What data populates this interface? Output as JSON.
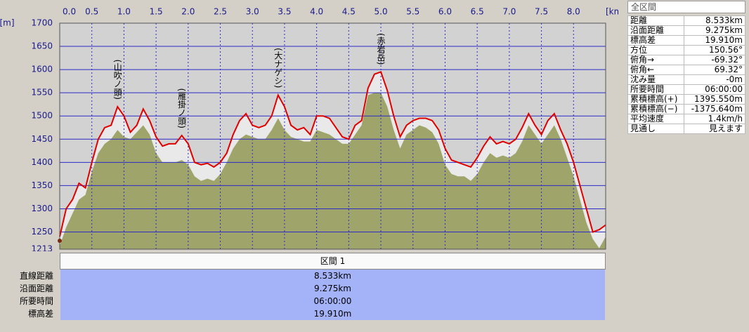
{
  "chart_data": {
    "type": "line",
    "xlabel": "[km]",
    "ylabel": "[m]",
    "xlim": [
      0,
      8.5
    ],
    "ylim": [
      1213,
      1700
    ],
    "xticks": [
      {
        "value": 0,
        "label": "0.0"
      },
      0.5,
      {
        "value": 1,
        "label": "1.0"
      },
      1.5,
      {
        "value": 2,
        "label": "2.0"
      },
      2.5,
      {
        "value": 3,
        "label": "3.0"
      },
      3.5,
      {
        "value": 4,
        "label": "4.0"
      },
      4.5,
      {
        "value": 5,
        "label": "5.0"
      },
      5.5,
      {
        "value": 6,
        "label": "6.0"
      },
      6.5,
      {
        "value": 7,
        "label": "7.0"
      },
      7.5,
      {
        "value": 8,
        "label": "8.0"
      }
    ],
    "yticks": [
      1213,
      1250,
      1300,
      1350,
      1400,
      1450,
      1500,
      1550,
      1600,
      1650,
      1700
    ],
    "grid": true,
    "grid_color": "#2b2bc8",
    "plot_background": "#d2d2d2",
    "x": [
      0,
      0.1,
      0.2,
      0.3,
      0.4,
      0.5,
      0.6,
      0.7,
      0.8,
      0.9,
      1,
      1.1,
      1.2,
      1.3,
      1.4,
      1.5,
      1.6,
      1.7,
      1.8,
      1.9,
      2,
      2.1,
      2.2,
      2.3,
      2.4,
      2.5,
      2.6,
      2.7,
      2.8,
      2.9,
      3,
      3.1,
      3.2,
      3.3,
      3.4,
      3.5,
      3.6,
      3.7,
      3.8,
      3.9,
      4,
      4.1,
      4.2,
      4.3,
      4.4,
      4.5,
      4.6,
      4.7,
      4.8,
      4.9,
      5,
      5.1,
      5.2,
      5.3,
      5.4,
      5.5,
      5.6,
      5.7,
      5.8,
      5.9,
      6,
      6.1,
      6.2,
      6.3,
      6.4,
      6.5,
      6.6,
      6.7,
      6.8,
      6.9,
      7,
      7.1,
      7.2,
      7.3,
      7.4,
      7.5,
      7.6,
      7.7,
      7.8,
      7.9,
      8,
      8.1,
      8.2,
      8.3,
      8.4,
      8.5
    ],
    "series": [
      {
        "kind": "line",
        "color": "#e00000",
        "fill": "#e9e9e9",
        "values": [
          1240,
          1300,
          1320,
          1355,
          1345,
          1400,
          1450,
          1475,
          1480,
          1520,
          1500,
          1465,
          1480,
          1515,
          1490,
          1455,
          1435,
          1440,
          1440,
          1458,
          1440,
          1400,
          1395,
          1398,
          1390,
          1400,
          1420,
          1460,
          1490,
          1505,
          1480,
          1475,
          1480,
          1500,
          1545,
          1520,
          1480,
          1470,
          1475,
          1460,
          1500,
          1500,
          1495,
          1475,
          1455,
          1450,
          1480,
          1490,
          1560,
          1590,
          1595,
          1555,
          1500,
          1455,
          1480,
          1490,
          1495,
          1495,
          1490,
          1470,
          1430,
          1405,
          1400,
          1395,
          1390,
          1410,
          1435,
          1455,
          1440,
          1445,
          1440,
          1450,
          1475,
          1505,
          1480,
          1460,
          1490,
          1505,
          1470,
          1440,
          1400,
          1350,
          1300,
          1250,
          1255,
          1265
        ]
      },
      {
        "kind": "area",
        "color": "#9fa46a",
        "values": [
          1220,
          1260,
          1290,
          1320,
          1330,
          1380,
          1420,
          1440,
          1450,
          1470,
          1455,
          1450,
          1465,
          1480,
          1460,
          1420,
          1400,
          1400,
          1400,
          1405,
          1395,
          1370,
          1360,
          1365,
          1360,
          1375,
          1400,
          1430,
          1450,
          1460,
          1455,
          1450,
          1450,
          1470,
          1495,
          1470,
          1455,
          1450,
          1445,
          1445,
          1470,
          1465,
          1460,
          1450,
          1440,
          1440,
          1460,
          1480,
          1545,
          1550,
          1550,
          1520,
          1470,
          1430,
          1460,
          1470,
          1480,
          1475,
          1465,
          1440,
          1395,
          1375,
          1370,
          1370,
          1360,
          1375,
          1400,
          1420,
          1410,
          1415,
          1410,
          1420,
          1445,
          1480,
          1460,
          1440,
          1460,
          1480,
          1450,
          1410,
          1370,
          1320,
          1270,
          1235,
          1215,
          1240
        ]
      }
    ],
    "annotations": [
      {
        "text": "(山吹ノ頭)",
        "x": 0.9
      },
      {
        "text": "(雁掛ノ頭)",
        "x": 1.9
      },
      {
        "text": "(大ナゲシ)",
        "x": 3.4
      },
      {
        "text": "(赤岩岳)",
        "x": 5
      }
    ]
  },
  "section": {
    "header": "区間 1",
    "rows": [
      {
        "label": "直線距離",
        "value": "8.533km"
      },
      {
        "label": "沿面距離",
        "value": "9.275km"
      },
      {
        "label": "所要時間",
        "value": "06:00:00"
      },
      {
        "label": "標高差",
        "value": "19.910m"
      }
    ]
  },
  "summary": {
    "title": "全区間",
    "rows": [
      {
        "label": "距離",
        "value": "8.533km"
      },
      {
        "label": "沿面距離",
        "value": "9.275km"
      },
      {
        "label": "標高差",
        "value": "19.910m"
      },
      {
        "label": "方位",
        "value": "150.56°"
      },
      {
        "label": "俯角→",
        "value": "-69.32°"
      },
      {
        "label": "俯角←",
        "value": "69.32°"
      },
      {
        "label": "沈み量",
        "value": "-0m"
      },
      {
        "label": "所要時間",
        "value": "06:00:00"
      },
      {
        "label": "累積標高(+)",
        "value": "1395.550m"
      },
      {
        "label": "累積標高(−)",
        "value": "-1375.640m"
      },
      {
        "label": "平均速度",
        "value": "1.4km/h"
      },
      {
        "label": "見通し",
        "value": "見えます"
      }
    ]
  }
}
